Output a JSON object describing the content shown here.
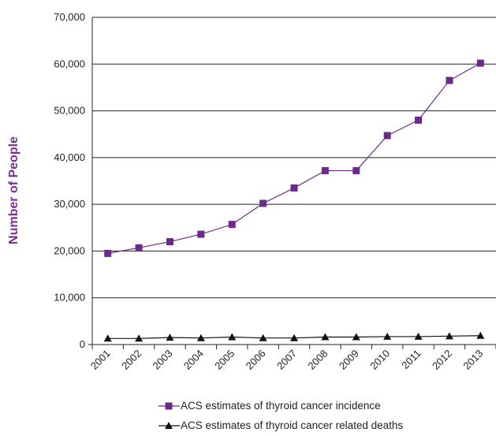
{
  "chart_data": {
    "type": "line",
    "title": "",
    "xlabel": "",
    "ylabel": "Number of People",
    "categories": [
      "2001",
      "2002",
      "2003",
      "2004",
      "2005",
      "2006",
      "2007",
      "2008",
      "2009",
      "2010",
      "2011",
      "2012",
      "2013"
    ],
    "ylim": [
      0,
      70000
    ],
    "yticks": [
      0,
      10000,
      20000,
      30000,
      40000,
      50000,
      60000,
      70000
    ],
    "ytick_labels": [
      "0",
      "10,000",
      "20,000",
      "30,000",
      "40,000",
      "50,000",
      "60,000",
      "70,000"
    ],
    "grid": true,
    "legend_position": "bottom",
    "series": [
      {
        "name": "ACS estimates of thyroid cancer incidence",
        "marker": "square",
        "color": "#6b2a8a",
        "values": [
          19500,
          20700,
          22000,
          23600,
          25700,
          30200,
          33500,
          37200,
          37200,
          44700,
          48000,
          56500,
          60200
        ]
      },
      {
        "name": "ACS estimates of thyroid cancer related deaths",
        "marker": "triangle",
        "color": "#111111",
        "values": [
          1300,
          1300,
          1500,
          1400,
          1600,
          1400,
          1400,
          1600,
          1600,
          1700,
          1700,
          1800,
          1900
        ]
      }
    ]
  }
}
